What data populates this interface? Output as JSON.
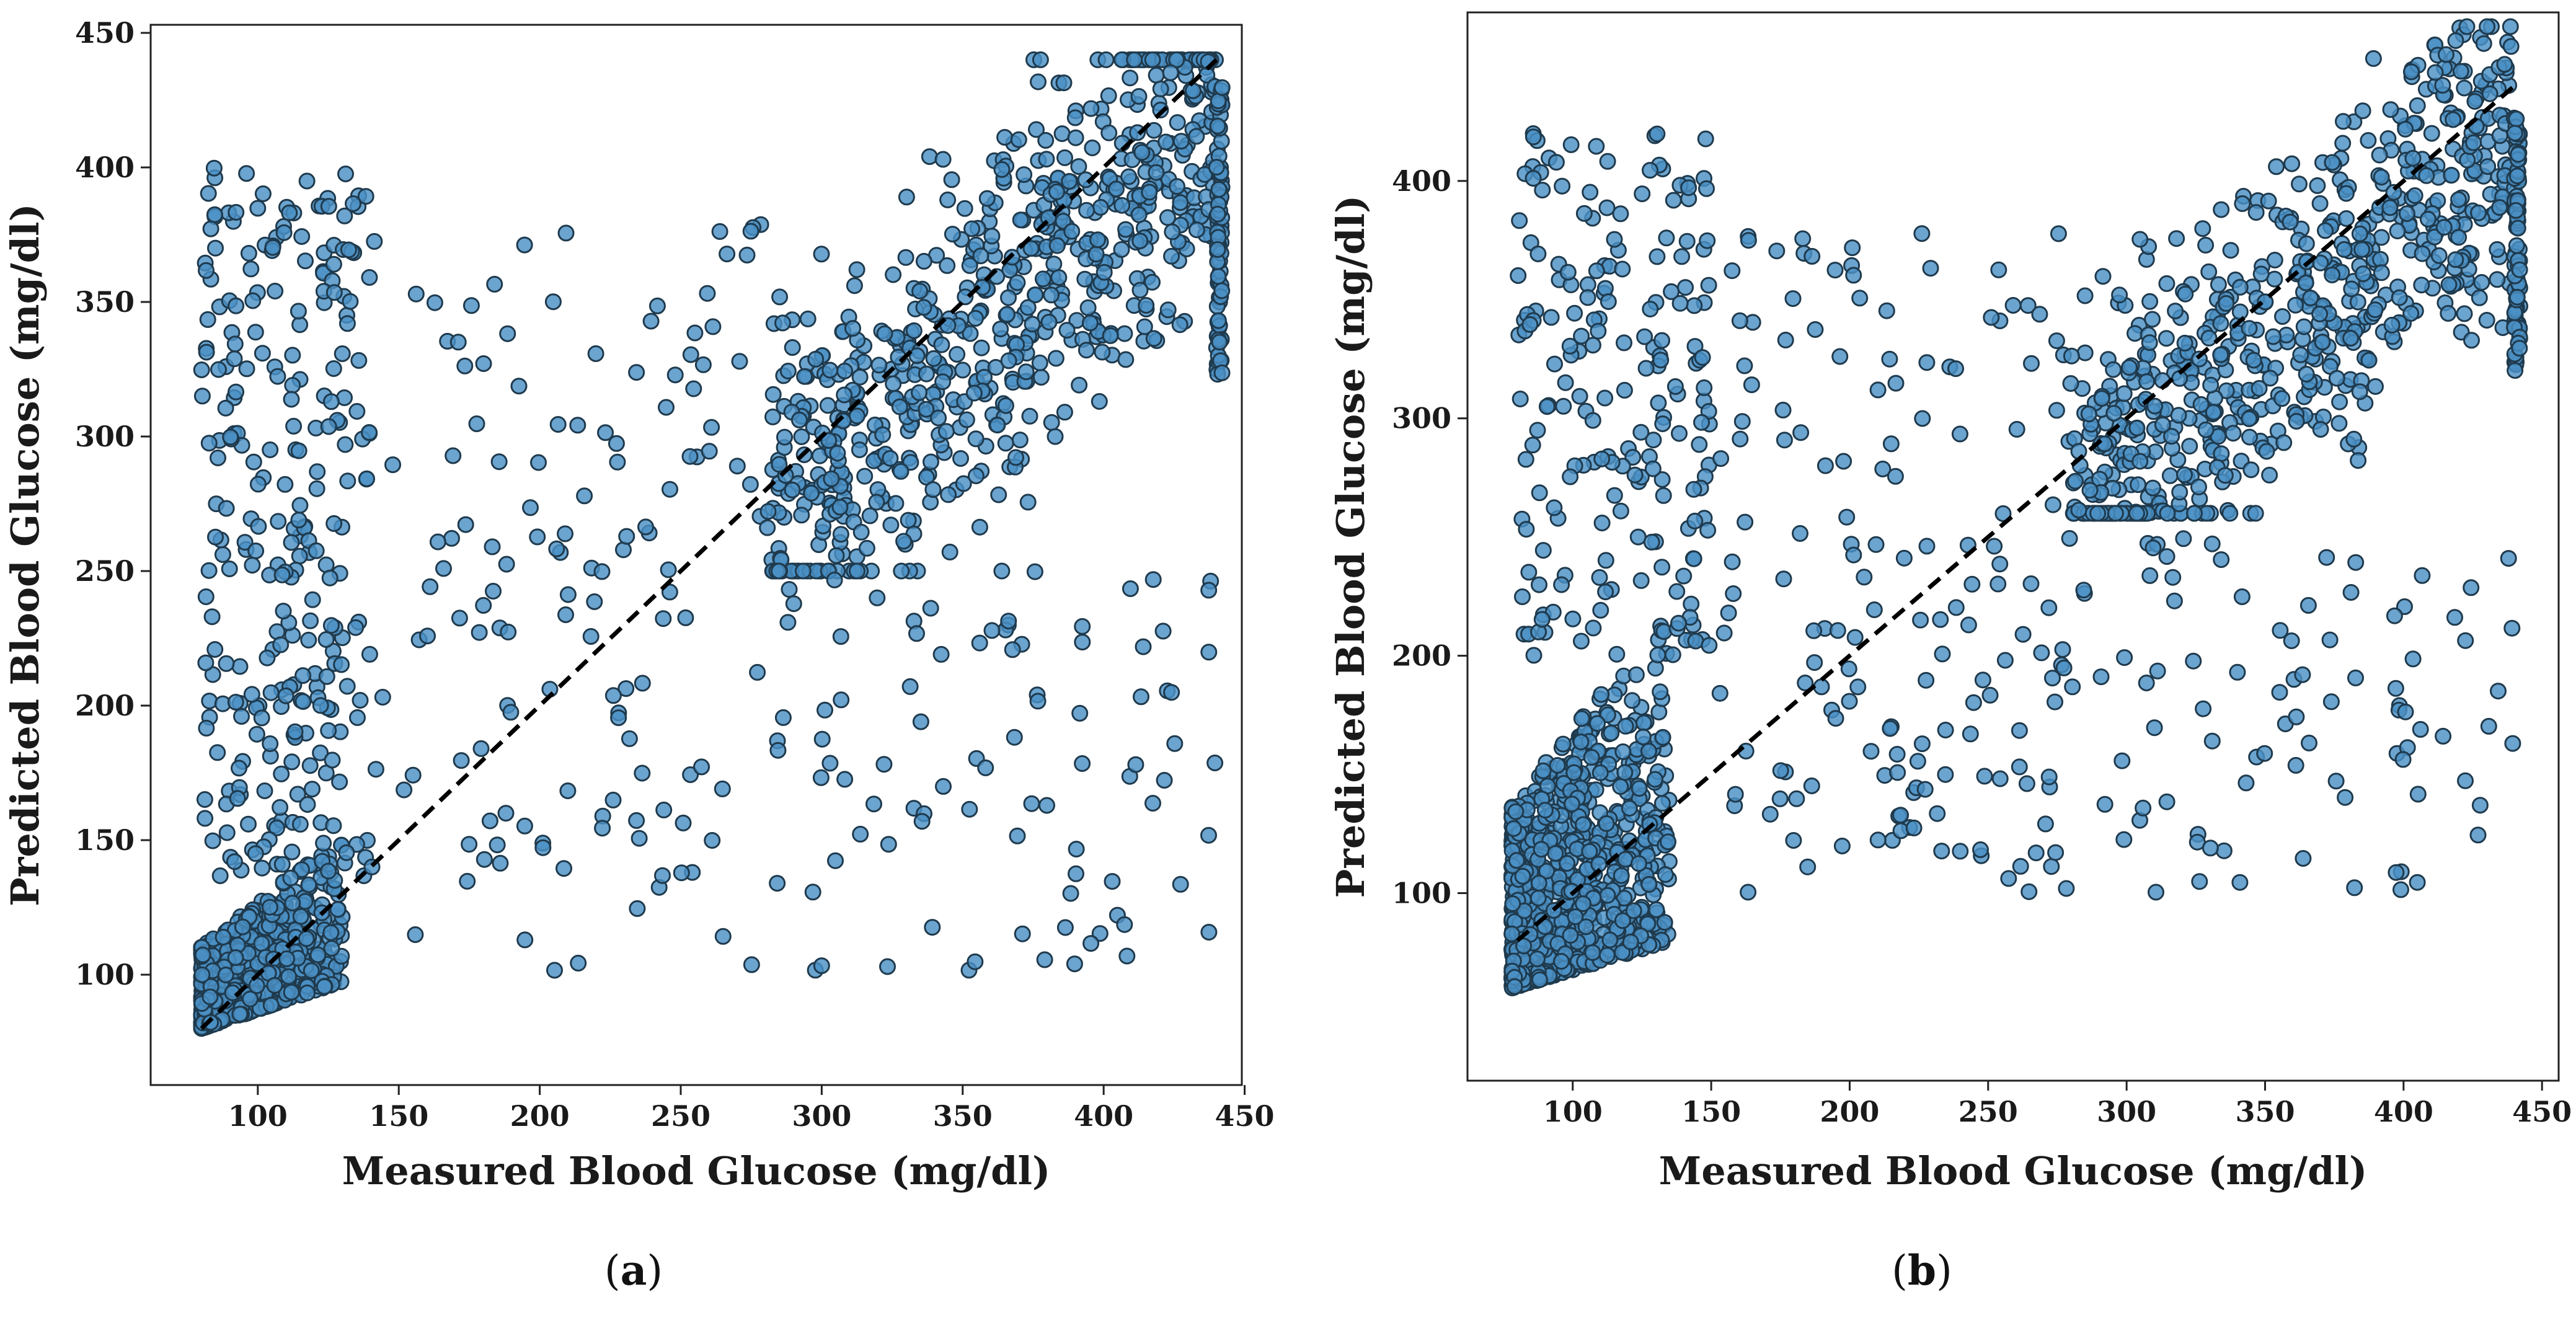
{
  "chart_data": [
    {
      "type": "scatter",
      "panel": "a",
      "xlabel": "Measured Blood Glucose (mg/dl)",
      "ylabel": "Predicted Blood Glucose (mg/dl)",
      "xlim": [
        62,
        449
      ],
      "ylim": [
        59,
        453
      ],
      "xticks": [
        100,
        150,
        200,
        250,
        300,
        350,
        400,
        450
      ],
      "yticks": [
        100,
        150,
        200,
        250,
        300,
        350,
        400,
        450
      ],
      "reference_line": {
        "style": "dashed",
        "from": [
          80,
          80
        ],
        "to": [
          440,
          440
        ]
      },
      "marker_color": "#4a90c4",
      "edge_color": "#1f3a4d",
      "point_count": 2000,
      "clusters": [
        {
          "name": "low-range dense cluster",
          "x_range": [
            80,
            130
          ],
          "y_range": [
            80,
            135
          ],
          "fraction": 0.36
        },
        {
          "name": "low-x vertical spread",
          "x_range": [
            80,
            140
          ],
          "y_range": [
            135,
            400
          ],
          "fraction": 0.14
        },
        {
          "name": "mid-range sparse points",
          "x_range": [
            140,
            300
          ],
          "y_range": [
            100,
            380
          ],
          "fraction": 0.08
        },
        {
          "name": "high-range band along diagonal",
          "x_range": [
            280,
            440
          ],
          "y_range": [
            250,
            440
          ],
          "fraction": 0.34
        },
        {
          "name": "high-x values clamped at 441",
          "x_range": [
            440,
            442
          ],
          "y_range": [
            320,
            430
          ],
          "fraction": 0.04
        },
        {
          "name": "high-x under-predictions",
          "x_range": [
            300,
            440
          ],
          "y_range": [
            100,
            250
          ],
          "fraction": 0.04
        }
      ]
    },
    {
      "type": "scatter",
      "panel": "b",
      "xlabel": "Measured Blood Glucose (mg/dl)",
      "ylabel": "Predicted Blood Glucose (mg/dl)",
      "xlim": [
        62,
        456
      ],
      "ylim": [
        21,
        471
      ],
      "xticks": [
        100,
        150,
        200,
        250,
        300,
        350,
        400,
        450
      ],
      "yticks": [
        100,
        200,
        300,
        400
      ],
      "reference_line": {
        "style": "dashed",
        "from": [
          80,
          80
        ],
        "to": [
          440,
          440
        ]
      },
      "marker_color": "#4a90c4",
      "edge_color": "#1f3a4d",
      "point_count": 2000,
      "clusters": [
        {
          "name": "low-range dense cluster",
          "x_range": [
            78,
            135
          ],
          "y_range": [
            60,
            200
          ],
          "fraction": 0.4
        },
        {
          "name": "low-x vertical spread",
          "x_range": [
            80,
            150
          ],
          "y_range": [
            200,
            420
          ],
          "fraction": 0.1
        },
        {
          "name": "mid-range sparse points",
          "x_range": [
            150,
            300
          ],
          "y_range": [
            100,
            380
          ],
          "fraction": 0.09
        },
        {
          "name": "high-range band along diagonal",
          "x_range": [
            280,
            440
          ],
          "y_range": [
            260,
            465
          ],
          "fraction": 0.33
        },
        {
          "name": "high-x values clamped at 441",
          "x_range": [
            440,
            442
          ],
          "y_range": [
            320,
            430
          ],
          "fraction": 0.04
        },
        {
          "name": "high-x under-predictions",
          "x_range": [
            300,
            440
          ],
          "y_range": [
            100,
            250
          ],
          "fraction": 0.04
        }
      ]
    }
  ],
  "panel_labels": {
    "a": {
      "open": "(",
      "letter": "a",
      "close": ")"
    },
    "b": {
      "open": "(",
      "letter": "b",
      "close": ")"
    }
  }
}
